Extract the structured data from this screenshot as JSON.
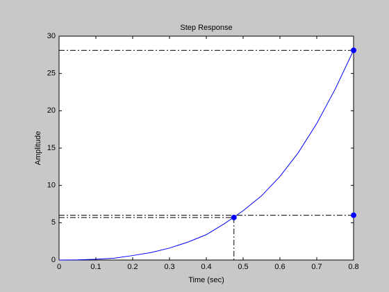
{
  "chart_data": {
    "type": "line",
    "title": "Step Response",
    "x_label": "Time (sec)",
    "y_label": "Amplitude",
    "x": [
      0,
      0.05,
      0.1,
      0.15,
      0.2,
      0.25,
      0.3,
      0.35,
      0.4,
      0.45,
      0.5,
      0.55,
      0.6,
      0.65,
      0.7,
      0.75,
      0.8
    ],
    "series": [
      {
        "color": "#0000ff",
        "values": [
          0,
          0.02,
          0.1,
          0.25,
          0.6,
          1.0,
          1.6,
          2.4,
          3.4,
          4.9,
          6.6,
          8.6,
          11.2,
          14.4,
          18.3,
          22.9,
          28.1
        ]
      }
    ],
    "markers": [
      {
        "x": 0.8,
        "y": 28.1
      },
      {
        "x": 0.475,
        "y": 5.7
      },
      {
        "x": 0.8,
        "y": 6.0
      }
    ],
    "marker_color": "#0000ff",
    "xlim": [
      0,
      0.8
    ],
    "ylim": [
      0,
      30
    ],
    "xticks": [
      0,
      0.1,
      0.2,
      0.3,
      0.4,
      0.5,
      0.6,
      0.7,
      0.8
    ],
    "yticks": [
      0,
      5,
      10,
      15,
      20,
      25,
      30
    ]
  }
}
